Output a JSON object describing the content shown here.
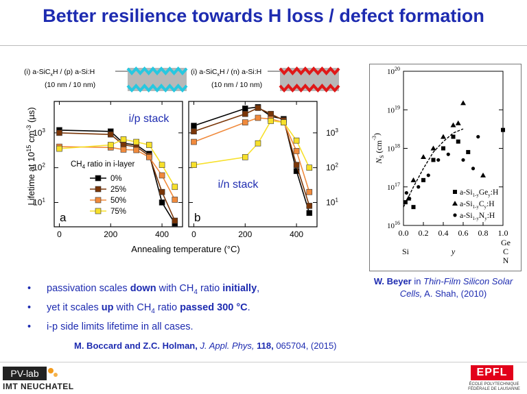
{
  "slide": {
    "title": "Better resilience towards H loss / defect formation",
    "bullets": [
      {
        "parts": [
          {
            "t": "passivation scales "
          },
          {
            "t": "down",
            "b": true
          },
          {
            "t": " with CH"
          },
          {
            "t": "4",
            "sub": true
          },
          {
            "t": " ratio "
          },
          {
            "t": "initially",
            "b": true
          },
          {
            "t": ","
          }
        ]
      },
      {
        "parts": [
          {
            "t": "yet it scales "
          },
          {
            "t": "up",
            "b": true
          },
          {
            "t": " with CH"
          },
          {
            "t": "4",
            "sub": true
          },
          {
            "t": " ratio "
          },
          {
            "t": "passed 300 °C",
            "b": true
          },
          {
            "t": "."
          }
        ]
      },
      {
        "parts": [
          {
            "t": "i-p side limits lifetime in all cases."
          }
        ]
      }
    ],
    "reference_main": {
      "authors": "M. Boccard and Z.C. Holman,",
      "journal": "J. Appl. Phys,",
      "volume": "118,",
      "rest": "065704, (2015)"
    },
    "reference_side": {
      "author": "W. Beyer",
      "in": "in",
      "book": "Thin-Film Silicon Solar Cells,",
      "rest": "A. Shah, (2010)"
    },
    "logo_left": {
      "line1": "PV-lab",
      "line2": "IMT NEUCHATEL"
    },
    "logo_right": {
      "mark": "EPFL",
      "line1": "ÉCOLE POLYTECHNIQUE",
      "line2": "FÉDÉRALE DE LAUSANNE"
    }
  },
  "stack_diagrams": [
    {
      "label_parts": [
        "(i) a-SiC",
        "x",
        "H / (p) a-Si:H"
      ],
      "thickness": "(10 nm / 10 nm)",
      "layer_color": "#27c8e0"
    },
    {
      "label_parts": [
        "(i) a-SiC",
        "x",
        "H / (n) a-Si:H"
      ],
      "thickness": "(10 nm / 10 nm)",
      "layer_color": "#e01818"
    }
  ],
  "chart_data": [
    {
      "type": "line",
      "title": "i/p stack",
      "panel_label": "a",
      "ylabel": "Lifetime at 10^15 cm^-3 (µs)",
      "xlabel": "",
      "ylog": true,
      "ylim": [
        2,
        8000
      ],
      "xlim": [
        -20,
        480
      ],
      "xticks": [
        0,
        200,
        400
      ],
      "yticks": [
        {
          "v": 10,
          "label": "10^1"
        },
        {
          "v": 100,
          "label": "10^2"
        },
        {
          "v": 1000,
          "label": "10^3"
        }
      ],
      "legend_title": "CH4 ratio in i-layer",
      "x": [
        0,
        200,
        250,
        300,
        350,
        400,
        450
      ],
      "series": [
        {
          "name": "0%",
          "color": "#000000",
          "values": [
            1200,
            1100,
            500,
            450,
            250,
            10,
            2.5
          ]
        },
        {
          "name": "25%",
          "color": "#7a3608",
          "values": [
            1000,
            900,
            450,
            400,
            220,
            20,
            3
          ]
        },
        {
          "name": "50%",
          "color": "#f08a3c",
          "values": [
            400,
            380,
            330,
            320,
            200,
            60,
            12
          ]
        },
        {
          "name": "75%",
          "color": "#f7e02a",
          "values": [
            350,
            450,
            650,
            550,
            450,
            120,
            28
          ]
        }
      ]
    },
    {
      "type": "line",
      "title": "i/n stack",
      "panel_label": "b",
      "xlabel": "Annealing temperature (°C)",
      "ylog": true,
      "ylim": [
        2,
        8000
      ],
      "xlim": [
        -20,
        480
      ],
      "xticks": [
        0,
        200,
        400
      ],
      "yticks": [
        {
          "v": 10,
          "label": "10^1"
        },
        {
          "v": 100,
          "label": "10^2"
        },
        {
          "v": 1000,
          "label": "10^3"
        }
      ],
      "x": [
        0,
        200,
        250,
        300,
        350,
        400,
        450
      ],
      "series": [
        {
          "name": "0%",
          "color": "#000000",
          "values": [
            1600,
            5000,
            5500,
            3000,
            2500,
            80,
            5
          ]
        },
        {
          "name": "25%",
          "color": "#7a3608",
          "values": [
            1100,
            3500,
            5200,
            3500,
            2300,
            120,
            8
          ]
        },
        {
          "name": "50%",
          "color": "#f08a3c",
          "values": [
            550,
            2000,
            2700,
            2500,
            2000,
            300,
            20
          ]
        },
        {
          "name": "75%",
          "color": "#f7e02a",
          "values": [
            120,
            200,
            500,
            2200,
            2000,
            600,
            100
          ]
        }
      ]
    },
    {
      "type": "scatter",
      "xlabel": "y",
      "ylabel": "Ns (cm^-3)",
      "ylog": true,
      "ylim": [
        1e+16,
        1e+20
      ],
      "xlim": [
        0,
        1
      ],
      "xticks": [
        {
          "v": 0,
          "label": "0.0"
        },
        {
          "v": 0.2,
          "label": "0.2"
        },
        {
          "v": 0.4,
          "label": "0.4"
        },
        {
          "v": 0.6,
          "label": "0.6"
        },
        {
          "v": 0.8,
          "label": "0.8"
        },
        {
          "v": 1,
          "label": "1.0"
        }
      ],
      "yticks": [
        {
          "e": 16
        },
        {
          "e": 17
        },
        {
          "e": 18
        },
        {
          "e": 19
        },
        {
          "e": 20
        }
      ],
      "x_left_label": "Si",
      "x_right_labels": [
        "Ge",
        "C",
        "N"
      ],
      "series": [
        {
          "name": "a-Si1-yGey:H",
          "marker": "square",
          "points": [
            [
              0.02,
              4e+16
            ],
            [
              0.1,
              3e+16
            ],
            [
              0.2,
              1.5e+17
            ],
            [
              0.3,
              5e+17
            ],
            [
              0.4,
              1e+18
            ],
            [
              0.5,
              2e+18
            ],
            [
              0.55,
              1.5e+18
            ],
            [
              0.65,
              8e+17
            ],
            [
              1.0,
              3e+18
            ]
          ]
        },
        {
          "name": "a-Si1-yCy:H",
          "marker": "triangle",
          "points": [
            [
              0.05,
              5e+16
            ],
            [
              0.1,
              1.5e+17
            ],
            [
              0.2,
              6e+17
            ],
            [
              0.3,
              1e+18
            ],
            [
              0.4,
              2e+18
            ],
            [
              0.5,
              4e+18
            ],
            [
              0.55,
              4.5e+18
            ],
            [
              0.6,
              1.5e+19
            ],
            [
              0.8,
              2e+17
            ]
          ]
        },
        {
          "name": "a-Si1-yNy:H",
          "marker": "circle",
          "points": [
            [
              0.03,
              7e+16
            ],
            [
              0.06,
              5e+16
            ],
            [
              0.15,
              1e+17
            ],
            [
              0.25,
              2e+17
            ],
            [
              0.35,
              5e+17
            ],
            [
              0.45,
              7e+17
            ],
            [
              0.6,
              5e+17
            ],
            [
              0.7,
              3e+17
            ],
            [
              0.75,
              2e+18
            ]
          ]
        }
      ],
      "trend": [
        [
          0.0,
          3e+16
        ],
        [
          0.1,
          1e+17
        ],
        [
          0.2,
          3e+17
        ],
        [
          0.3,
          8e+17
        ],
        [
          0.4,
          1.5e+18
        ],
        [
          0.5,
          2.5e+18
        ],
        [
          0.6,
          3.2e+18
        ]
      ]
    }
  ]
}
